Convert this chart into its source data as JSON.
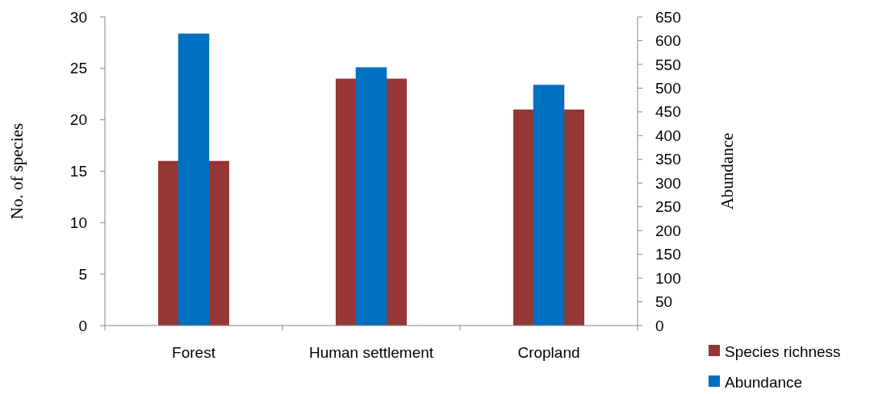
{
  "chart_data": {
    "type": "bar",
    "categories": [
      "Forest",
      "Human settlement",
      "Cropland"
    ],
    "ylabel": "No. of species",
    "y2label": "Abundance",
    "ylim": [
      0,
      30
    ],
    "yticks": [
      0,
      5,
      10,
      15,
      20,
      25,
      30
    ],
    "y2lim": [
      0,
      650
    ],
    "y2ticks": [
      0,
      50,
      100,
      150,
      200,
      250,
      300,
      350,
      400,
      450,
      500,
      550,
      600,
      650
    ],
    "series": [
      {
        "name": "Species richness",
        "color": "#953735",
        "values": [
          16,
          24,
          21
        ]
      },
      {
        "name": "Abundance",
        "color": "#0070c0",
        "values": [
          615,
          544,
          507
        ],
        "axis": "y2"
      }
    ],
    "legend": "bottom right",
    "grid": false
  }
}
